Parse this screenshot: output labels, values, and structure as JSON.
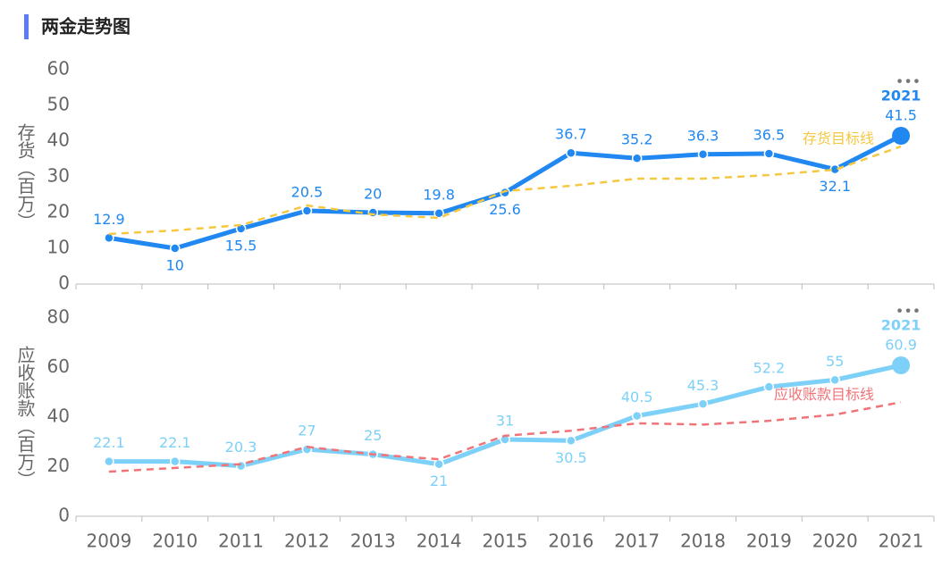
{
  "title": "两金走势图",
  "chart_data": [
    {
      "type": "line",
      "y_label": "存货（百万）",
      "ylim": [
        0,
        60
      ],
      "yticks": [
        0,
        10,
        20,
        30,
        40,
        50,
        60
      ],
      "series": [
        {
          "color": "#2088f0",
          "values": [
            12.9,
            10,
            15.5,
            20.5,
            20,
            19.8,
            25.6,
            36.7,
            35.2,
            36.3,
            36.5,
            32.1,
            41.5
          ]
        },
        {
          "name": "存货目标线",
          "color": "#f5c842",
          "dashed": true,
          "values": [
            14,
            15,
            16.5,
            22,
            19.5,
            18.5,
            26,
            27.5,
            29.5,
            29.5,
            30.5,
            32,
            38.5
          ]
        }
      ]
    },
    {
      "type": "line",
      "y_label": "应收账款（百万）",
      "ylim": [
        0,
        80
      ],
      "yticks": [
        0,
        20,
        40,
        60,
        80
      ],
      "categories": [
        "2009",
        "2010",
        "2011",
        "2012",
        "2013",
        "2014",
        "2015",
        "2016",
        "2017",
        "2018",
        "2019",
        "2020",
        "2021"
      ],
      "series": [
        {
          "color": "#7dd0f7",
          "values": [
            22.1,
            22.1,
            20.3,
            27,
            25,
            21,
            31,
            30.5,
            40.5,
            45.3,
            52.2,
            55,
            60.9
          ]
        },
        {
          "name": "应收账款目标线",
          "color": "#f07378",
          "dashed": true,
          "values": [
            18,
            19.5,
            21,
            28,
            25,
            23,
            32.5,
            34.5,
            37.5,
            37,
            38.5,
            41,
            46
          ]
        }
      ]
    }
  ]
}
